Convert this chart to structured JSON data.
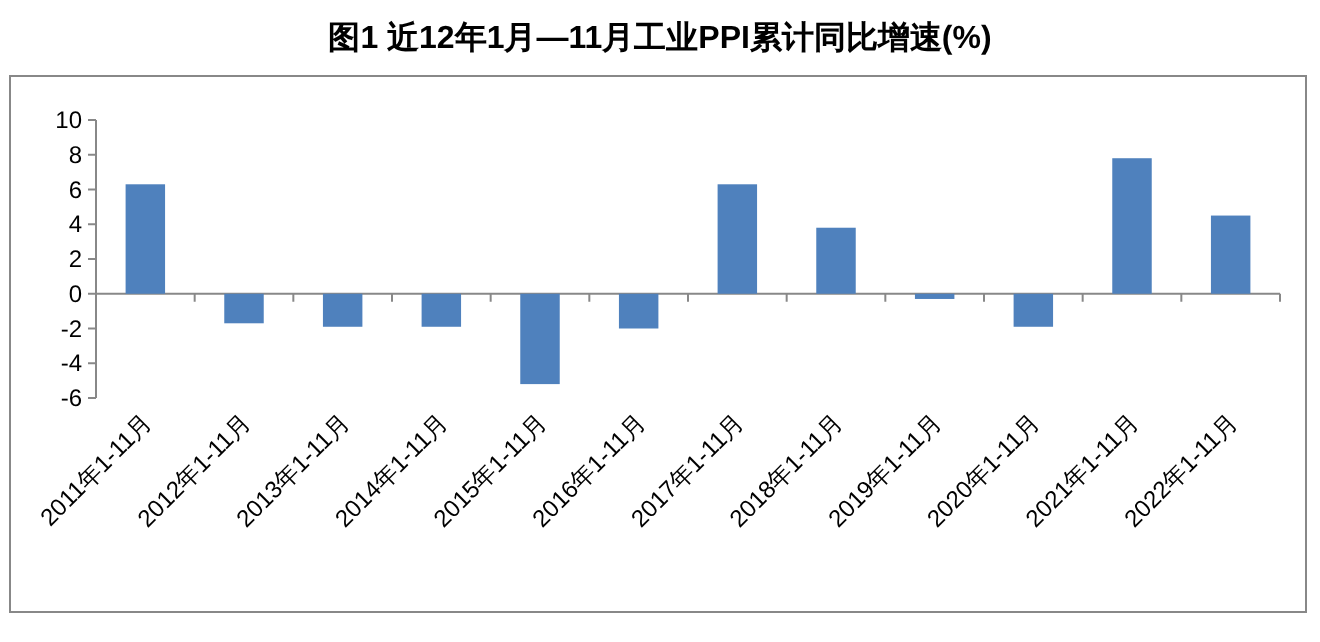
{
  "chart_data": {
    "type": "bar",
    "title": "图1 近12年1月—11月工业PPI累计同比增速(%)",
    "categories": [
      "2011年1-11月",
      "2012年1-11月",
      "2013年1-11月",
      "2014年1-11月",
      "2015年1-11月",
      "2016年1-11月",
      "2017年1-11月",
      "2018年1-11月",
      "2019年1-11月",
      "2020年1-11月",
      "2021年1-11月",
      "2022年1-11月"
    ],
    "values": [
      6.3,
      -1.7,
      -1.9,
      -1.9,
      -5.2,
      -2.0,
      6.3,
      3.8,
      -0.3,
      -1.9,
      7.8,
      4.5
    ],
    "color": "#4f81bd",
    "ylim": [
      -6,
      10
    ],
    "yticks": [
      -6,
      -4,
      -2,
      0,
      2,
      4,
      6,
      8,
      10
    ]
  }
}
